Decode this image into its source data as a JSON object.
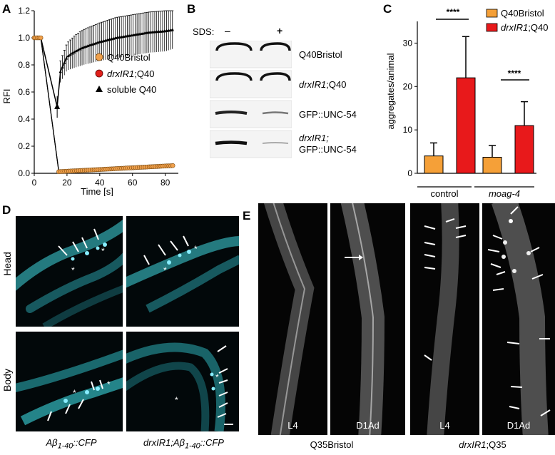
{
  "panels": {
    "a": "A",
    "b": "B",
    "c": "C",
    "d": "D",
    "e": "E"
  },
  "panel_a": {
    "ylabel": "RFI",
    "xlabel": "Time [s]",
    "yticks": [
      "0.0",
      "0.2",
      "0.4",
      "0.6",
      "0.8",
      "1.0",
      "1.2"
    ],
    "xticks": [
      "0",
      "20",
      "40",
      "60",
      "80"
    ],
    "legend": [
      {
        "label": "Q40Bristol",
        "marker": "circle",
        "color": "#f0a04b"
      },
      {
        "label_italic": "drxIR1",
        "label_rest": ";Q40",
        "marker": "circle",
        "color": "#e0201b"
      },
      {
        "label": "soluble Q40",
        "marker": "triangle",
        "color": "#000000"
      }
    ]
  },
  "panel_b": {
    "sds_label": "SDS:",
    "minus": "–",
    "plus": "+",
    "rows": [
      {
        "text": "Q40Bristol"
      },
      {
        "text_italic": "drxIR1",
        "text_rest": ";Q40"
      },
      {
        "text": "GFP::UNC-54"
      },
      {
        "text_italic": "drxIR1;",
        "text_line2": "GFP::UNC-54"
      }
    ]
  },
  "panel_c": {
    "ylabel": "aggregates/animal",
    "yticks": [
      "0",
      "10",
      "20",
      "30"
    ],
    "groups": [
      "control",
      "moag-4"
    ],
    "significance": "****",
    "legend": [
      {
        "label": "Q40Bristol",
        "color": "#f5a038"
      },
      {
        "label_italic": "drxIR1",
        "label_rest": ";Q40",
        "color": "#e8191b"
      }
    ]
  },
  "panel_d": {
    "row_labels": [
      "Head",
      "Body"
    ],
    "col_labels": [
      {
        "pre": "Aβ",
        "sub": "1-40",
        "post": "::CFP"
      },
      {
        "pre": "drxIR1;Aβ",
        "sub": "1-40",
        "post": "::CFP"
      }
    ]
  },
  "panel_e": {
    "stage_labels": [
      "L4",
      "D1Ad",
      "L4",
      "D1Ad"
    ],
    "group_labels": [
      "Q35Bristol",
      "drxIR1;Q35"
    ],
    "group_label_italic": "drxIR1",
    "group_label_rest": ";Q35"
  },
  "chart_data": [
    {
      "type": "scatter",
      "title": "",
      "xlabel": "Time [s]",
      "ylabel": "RFI",
      "xlim": [
        0,
        88
      ],
      "ylim": [
        0,
        1.2
      ],
      "series": [
        {
          "name": "Q40Bristol",
          "x": [
            0,
            1,
            2,
            3,
            4,
            15,
            20,
            30,
            40,
            50,
            60,
            70,
            80,
            85
          ],
          "y": [
            1.0,
            1.0,
            1.0,
            1.0,
            1.0,
            0.01,
            0.015,
            0.02,
            0.025,
            0.03,
            0.035,
            0.04,
            0.045,
            0.05
          ]
        },
        {
          "name": "drxIR1;Q40",
          "x": [
            0,
            1,
            2,
            3,
            4,
            15,
            20,
            30,
            40,
            50,
            60,
            70,
            80,
            85
          ],
          "y": [
            1.0,
            1.0,
            1.0,
            1.0,
            1.0,
            0.015,
            0.02,
            0.025,
            0.03,
            0.035,
            0.04,
            0.05,
            0.055,
            0.06
          ]
        },
        {
          "name": "soluble Q40",
          "x": [
            0,
            4,
            14,
            16,
            20,
            25,
            30,
            40,
            50,
            60,
            70,
            80,
            85
          ],
          "y": [
            1.0,
            1.0,
            0.49,
            0.75,
            0.86,
            0.9,
            0.93,
            0.97,
            1.0,
            1.02,
            1.04,
            1.05,
            1.06
          ],
          "err": [
            0,
            0,
            0.08,
            0.08,
            0.1,
            0.12,
            0.13,
            0.14,
            0.15,
            0.15,
            0.15,
            0.15,
            0.14
          ]
        }
      ]
    },
    {
      "type": "bar",
      "title": "",
      "xlabel": "",
      "ylabel": "aggregates/animal",
      "ylim": [
        0,
        35
      ],
      "categories": [
        "control",
        "moag-4"
      ],
      "series": [
        {
          "name": "Q40Bristol",
          "values": [
            4.0,
            3.7
          ],
          "err": [
            3.0,
            2.7
          ]
        },
        {
          "name": "drxIR1;Q40",
          "values": [
            22.0,
            11.0
          ],
          "err": [
            9.5,
            5.5
          ]
        }
      ]
    }
  ]
}
